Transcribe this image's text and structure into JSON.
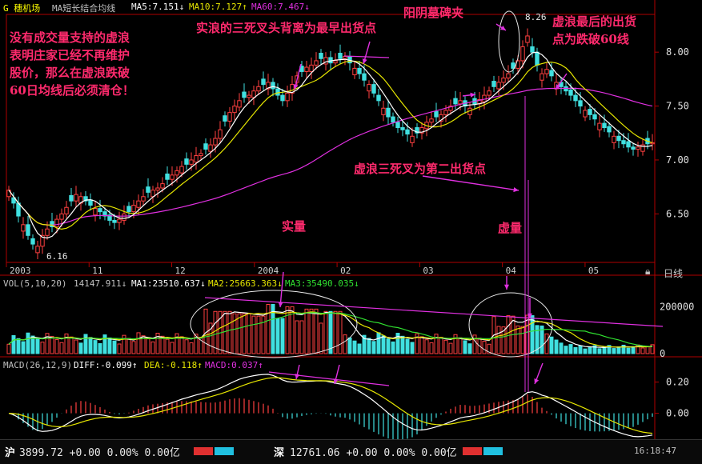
{
  "header": {
    "stock_label": "G 穗机场",
    "indicator": "MA短长结合均线",
    "ma5": "MA5:7.151↓",
    "ma10": "MA10:7.127↑",
    "ma60": "MA60:7.467↓",
    "daily": "日线"
  },
  "volume_header": {
    "label": "VOL(5,10,20)",
    "value": "14147.911↓",
    "ma1": "MA1:23510.637↓",
    "ma2": "MA2:25663.363↓",
    "ma3": "MA3:35490.035↓"
  },
  "macd_header": {
    "label": "MACD(26,12,9)",
    "diff": "DIFF:-0.099↑",
    "dea": "DEA:-0.118↑",
    "macd": "MACD:0.037↑"
  },
  "annotations": {
    "left_text": [
      "没有成交量支持的虚浪",
      "表明庄家已经不再维护",
      "股价，那么在虚浪跌破",
      "60日均线后必须清仓！"
    ],
    "top_middle": "实浪的三死叉头背离为最早出货点",
    "gravestone": "阳阴墓碑夹",
    "last_exit": [
      "虚浪最后的出货",
      "点为跌破60线"
    ],
    "second_exit": "虚浪三死叉为第二出货点",
    "real_volume": "实量",
    "virtual_volume": "虚量",
    "high_price": "8.26",
    "low_price": "6.16"
  },
  "taskbar": {
    "sh": "沪",
    "sh_value": "3899.72 +0.00 0.00% 0.00亿",
    "sz": "深",
    "sz_value": "12761.06 +0.00 0.00% 0.00亿",
    "time": "16:18:47"
  },
  "colors": {
    "up": "#ff4040",
    "down": "#40e0e0",
    "ma5": "#ffffff",
    "ma10": "#e6e600",
    "ma60": "#e030e0",
    "annotation": "#ff2a6d",
    "axis": "#b00000"
  },
  "chart_data": [
    {
      "type": "candlestick",
      "title": "MA短长结合均线",
      "y_ticks": [
        "8.00",
        "7.50",
        "7.00",
        "6.50"
      ],
      "ylim": [
        6.05,
        8.35
      ],
      "x_tick_labels": [
        "2003",
        "11",
        "12",
        "2004",
        "02",
        "03",
        "04",
        "05"
      ],
      "closes": [
        6.72,
        6.6,
        6.48,
        6.4,
        6.3,
        6.22,
        6.2,
        6.3,
        6.36,
        6.38,
        6.45,
        6.5,
        6.56,
        6.62,
        6.68,
        6.66,
        6.62,
        6.58,
        6.55,
        6.52,
        6.48,
        6.44,
        6.42,
        6.45,
        6.5,
        6.52,
        6.58,
        6.62,
        6.66,
        6.7,
        6.72,
        6.74,
        6.78,
        6.82,
        6.86,
        6.9,
        6.94,
        6.96,
        7.0,
        7.04,
        7.06,
        7.1,
        7.14,
        7.2,
        7.28,
        7.36,
        7.44,
        7.5,
        7.55,
        7.58,
        7.6,
        7.64,
        7.68,
        7.7,
        7.72,
        7.66,
        7.6,
        7.55,
        7.62,
        7.7,
        7.78,
        7.82,
        7.86,
        7.88,
        7.92,
        7.94,
        7.95,
        7.9,
        7.92,
        7.94,
        7.96,
        7.9,
        7.85,
        7.8,
        7.74,
        7.7,
        7.62,
        7.55,
        7.48,
        7.4,
        7.35,
        7.3,
        7.28,
        7.24,
        7.22,
        7.25,
        7.3,
        7.35,
        7.38,
        7.4,
        7.42,
        7.46,
        7.5,
        7.52,
        7.55,
        7.5,
        7.48,
        7.52,
        7.56,
        7.6,
        7.64,
        7.68,
        7.72,
        7.76,
        7.8,
        7.85,
        7.92,
        8.05,
        8.15,
        8.0,
        7.88,
        7.8,
        7.84,
        7.78,
        7.72,
        7.68,
        7.64,
        7.6,
        7.55,
        7.5,
        7.46,
        7.42,
        7.38,
        7.34,
        7.3,
        7.26,
        7.22,
        7.18,
        7.15,
        7.12,
        7.1,
        7.12,
        7.14,
        7.15,
        7.16
      ],
      "series": [
        {
          "name": "MA5",
          "last": 7.151
        },
        {
          "name": "MA10",
          "last": 7.127
        },
        {
          "name": "MA60",
          "last": 7.467
        }
      ]
    },
    {
      "type": "bar",
      "title": "VOL(5,10,20)",
      "y_ticks": [
        "200000",
        "0"
      ],
      "ylim": [
        0,
        280000
      ],
      "series": [
        {
          "name": "MA1",
          "last": 23510.637
        },
        {
          "name": "MA2",
          "last": 25663.363
        },
        {
          "name": "MA3",
          "last": 35490.035
        }
      ]
    },
    {
      "type": "line",
      "title": "MACD(26,12,9)",
      "y_ticks": [
        "0.20",
        "0.00"
      ],
      "ylim": [
        -0.12,
        0.28
      ],
      "series": [
        {
          "name": "DIFF",
          "last": -0.099
        },
        {
          "name": "DEA",
          "last": -0.118
        },
        {
          "name": "MACD",
          "last": 0.037
        }
      ]
    }
  ]
}
